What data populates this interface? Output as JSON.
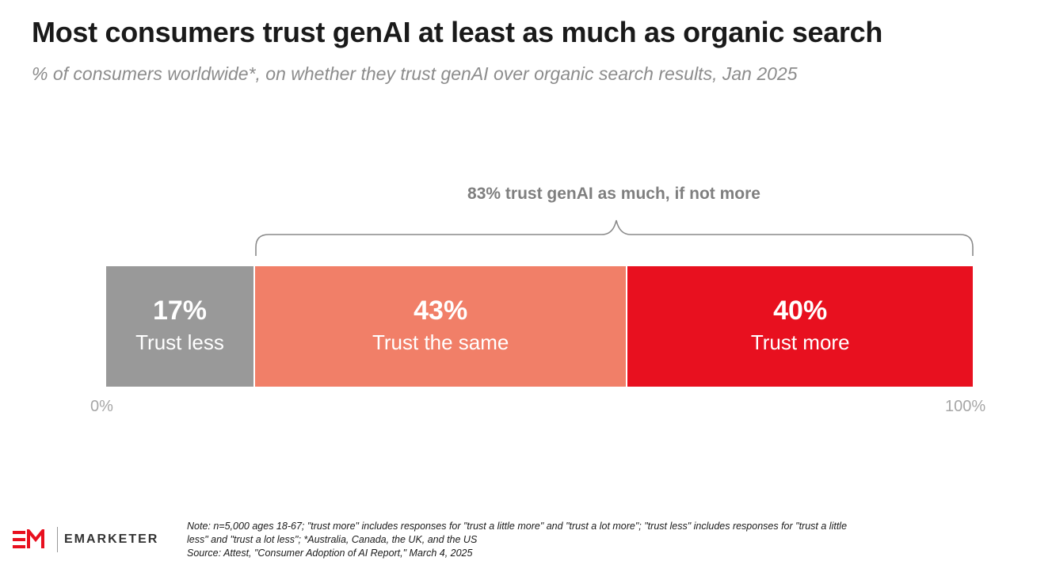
{
  "title": "Most consumers trust genAI at least as much as organic search",
  "subtitle": "% of consumers worldwide*, on whether they trust genAI over organic search results, Jan 2025",
  "chart_data": {
    "type": "bar",
    "orientation": "horizontal-stacked",
    "title": "Most consumers trust genAI at least as much as organic search",
    "subtitle": "% of consumers worldwide*, on whether they trust genAI over organic search results, Jan 2025",
    "unit": "%",
    "xlim": [
      0,
      100
    ],
    "axis_min_label": "0%",
    "axis_max_label": "100%",
    "series": [
      {
        "name": "Trust less",
        "value": 17,
        "value_label": "17%",
        "color": "#999999"
      },
      {
        "name": "Trust the same",
        "value": 43,
        "value_label": "43%",
        "color": "#f17f68"
      },
      {
        "name": "Trust more",
        "value": 40,
        "value_label": "40%",
        "color": "#e8101f"
      }
    ],
    "annotation": {
      "text": "83% trust genAI as much, if not more",
      "spans": [
        "Trust the same",
        "Trust more"
      ]
    }
  },
  "notes": {
    "line1": "Note: n=5,000 ages 18-67; \"trust more\" includes responses for \"trust a little more\" and \"trust a lot more\"; \"trust less\" includes responses for \"trust a little",
    "line2": "less\" and \"trust a lot less\"; *Australia, Canada, the UK, and the US",
    "line3": "Source: Attest, \"Consumer Adoption of AI Report,\" March 4, 2025"
  },
  "logo": {
    "text": "EMARKETER",
    "mark_icon": "em-logo-icon",
    "color": "#e8101f"
  }
}
